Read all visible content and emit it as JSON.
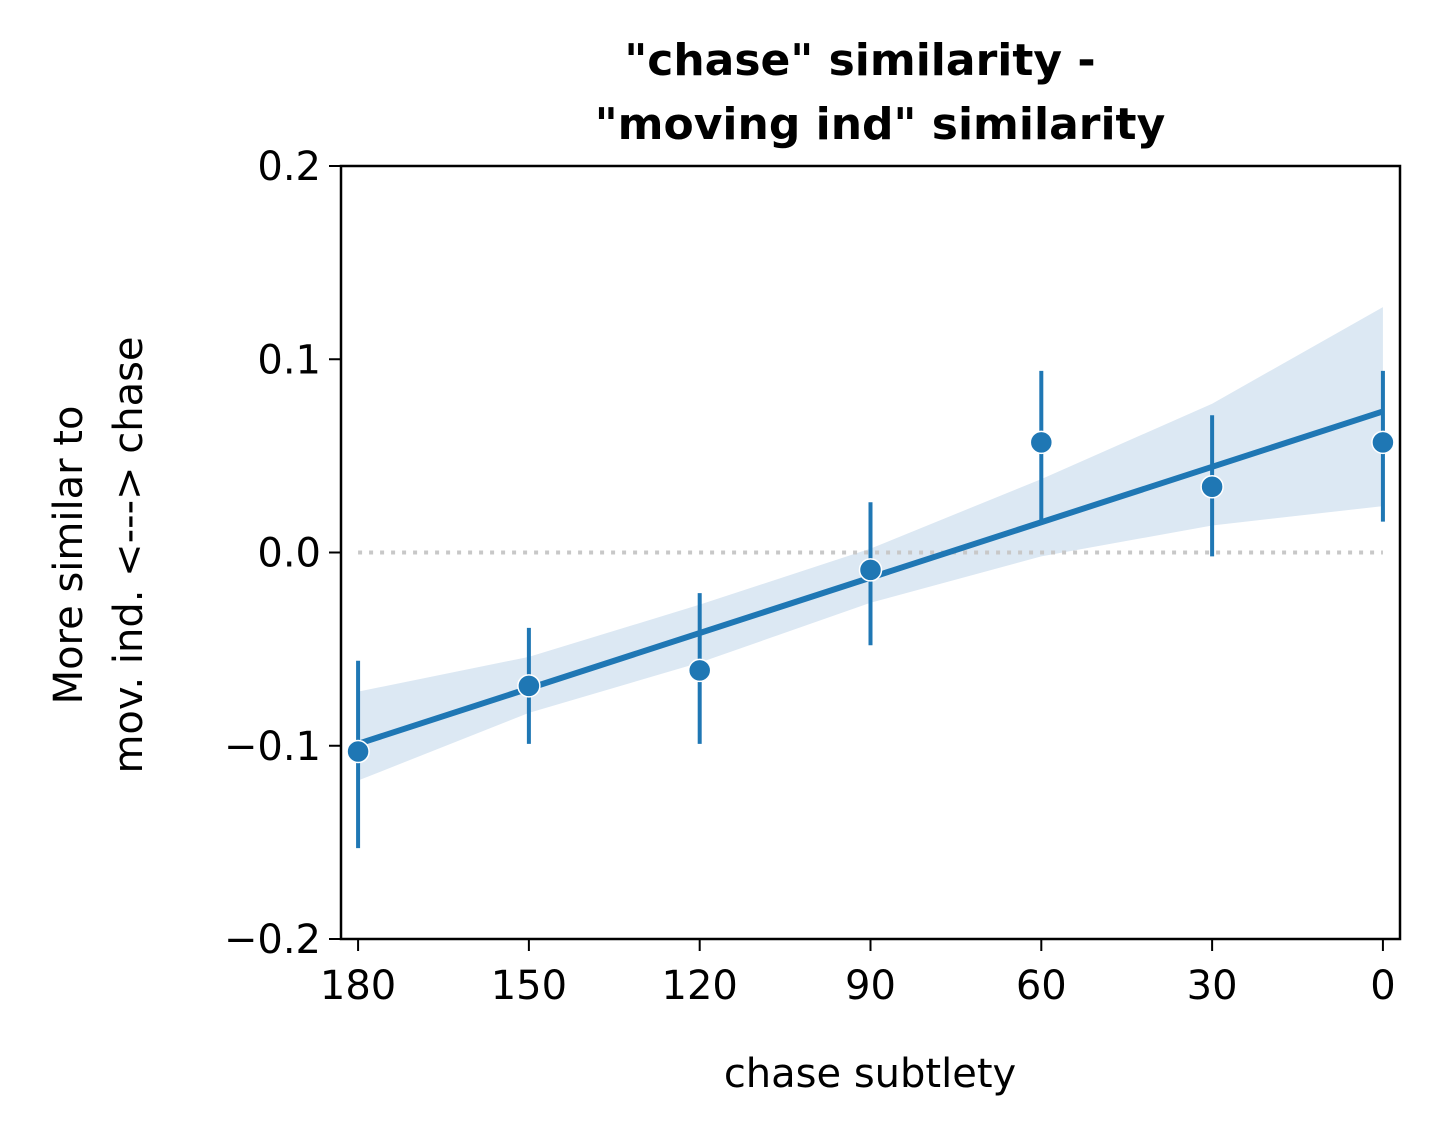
{
  "chart_data": {
    "type": "scatter",
    "title": [
      "\"chase\" similarity -",
      "\"moving ind\" similarity"
    ],
    "xlabel": "chase subtlety",
    "ylabel": [
      "More similar to",
      "mov. ind. <---> chase"
    ],
    "x_axis_reversed": true,
    "xlim": [
      183,
      -3
    ],
    "ylim": [
      -0.2,
      0.2
    ],
    "x_ticks": [
      180,
      150,
      120,
      90,
      60,
      30,
      0
    ],
    "y_ticks": [
      0.2,
      0.1,
      0.0,
      -0.1,
      -0.2
    ],
    "y_tick_labels": [
      "0.2",
      "0.1",
      "0.0",
      "−0.1",
      "−0.2"
    ],
    "grid": false,
    "colors": {
      "series": "#1f77b4",
      "ci_band": "#dce8f3",
      "reference": "#c8c8c8"
    },
    "points": [
      {
        "x": 180,
        "y": -0.103,
        "err_low": -0.153,
        "err_high": -0.056
      },
      {
        "x": 150,
        "y": -0.069,
        "err_low": -0.099,
        "err_high": -0.039
      },
      {
        "x": 120,
        "y": -0.061,
        "err_low": -0.099,
        "err_high": -0.021
      },
      {
        "x": 90,
        "y": -0.009,
        "err_low": -0.048,
        "err_high": 0.026
      },
      {
        "x": 60,
        "y": 0.057,
        "err_low": 0.015,
        "err_high": 0.094
      },
      {
        "x": 30,
        "y": 0.034,
        "err_low": -0.002,
        "err_high": 0.071
      },
      {
        "x": 0,
        "y": 0.057,
        "err_low": 0.016,
        "err_high": 0.094
      }
    ],
    "regression_line": {
      "x": [
        180,
        0
      ],
      "y": [
        -0.099,
        0.073
      ]
    },
    "ci_band": {
      "x": [
        180,
        150,
        120,
        90,
        60,
        30,
        0
      ],
      "lower": [
        -0.118,
        -0.083,
        -0.057,
        -0.026,
        -0.002,
        0.014,
        0.024
      ],
      "upper": [
        -0.072,
        -0.054,
        -0.027,
        0.002,
        0.038,
        0.077,
        0.127
      ]
    },
    "reference_line": {
      "y": 0.0,
      "x": [
        180,
        0
      ]
    }
  }
}
